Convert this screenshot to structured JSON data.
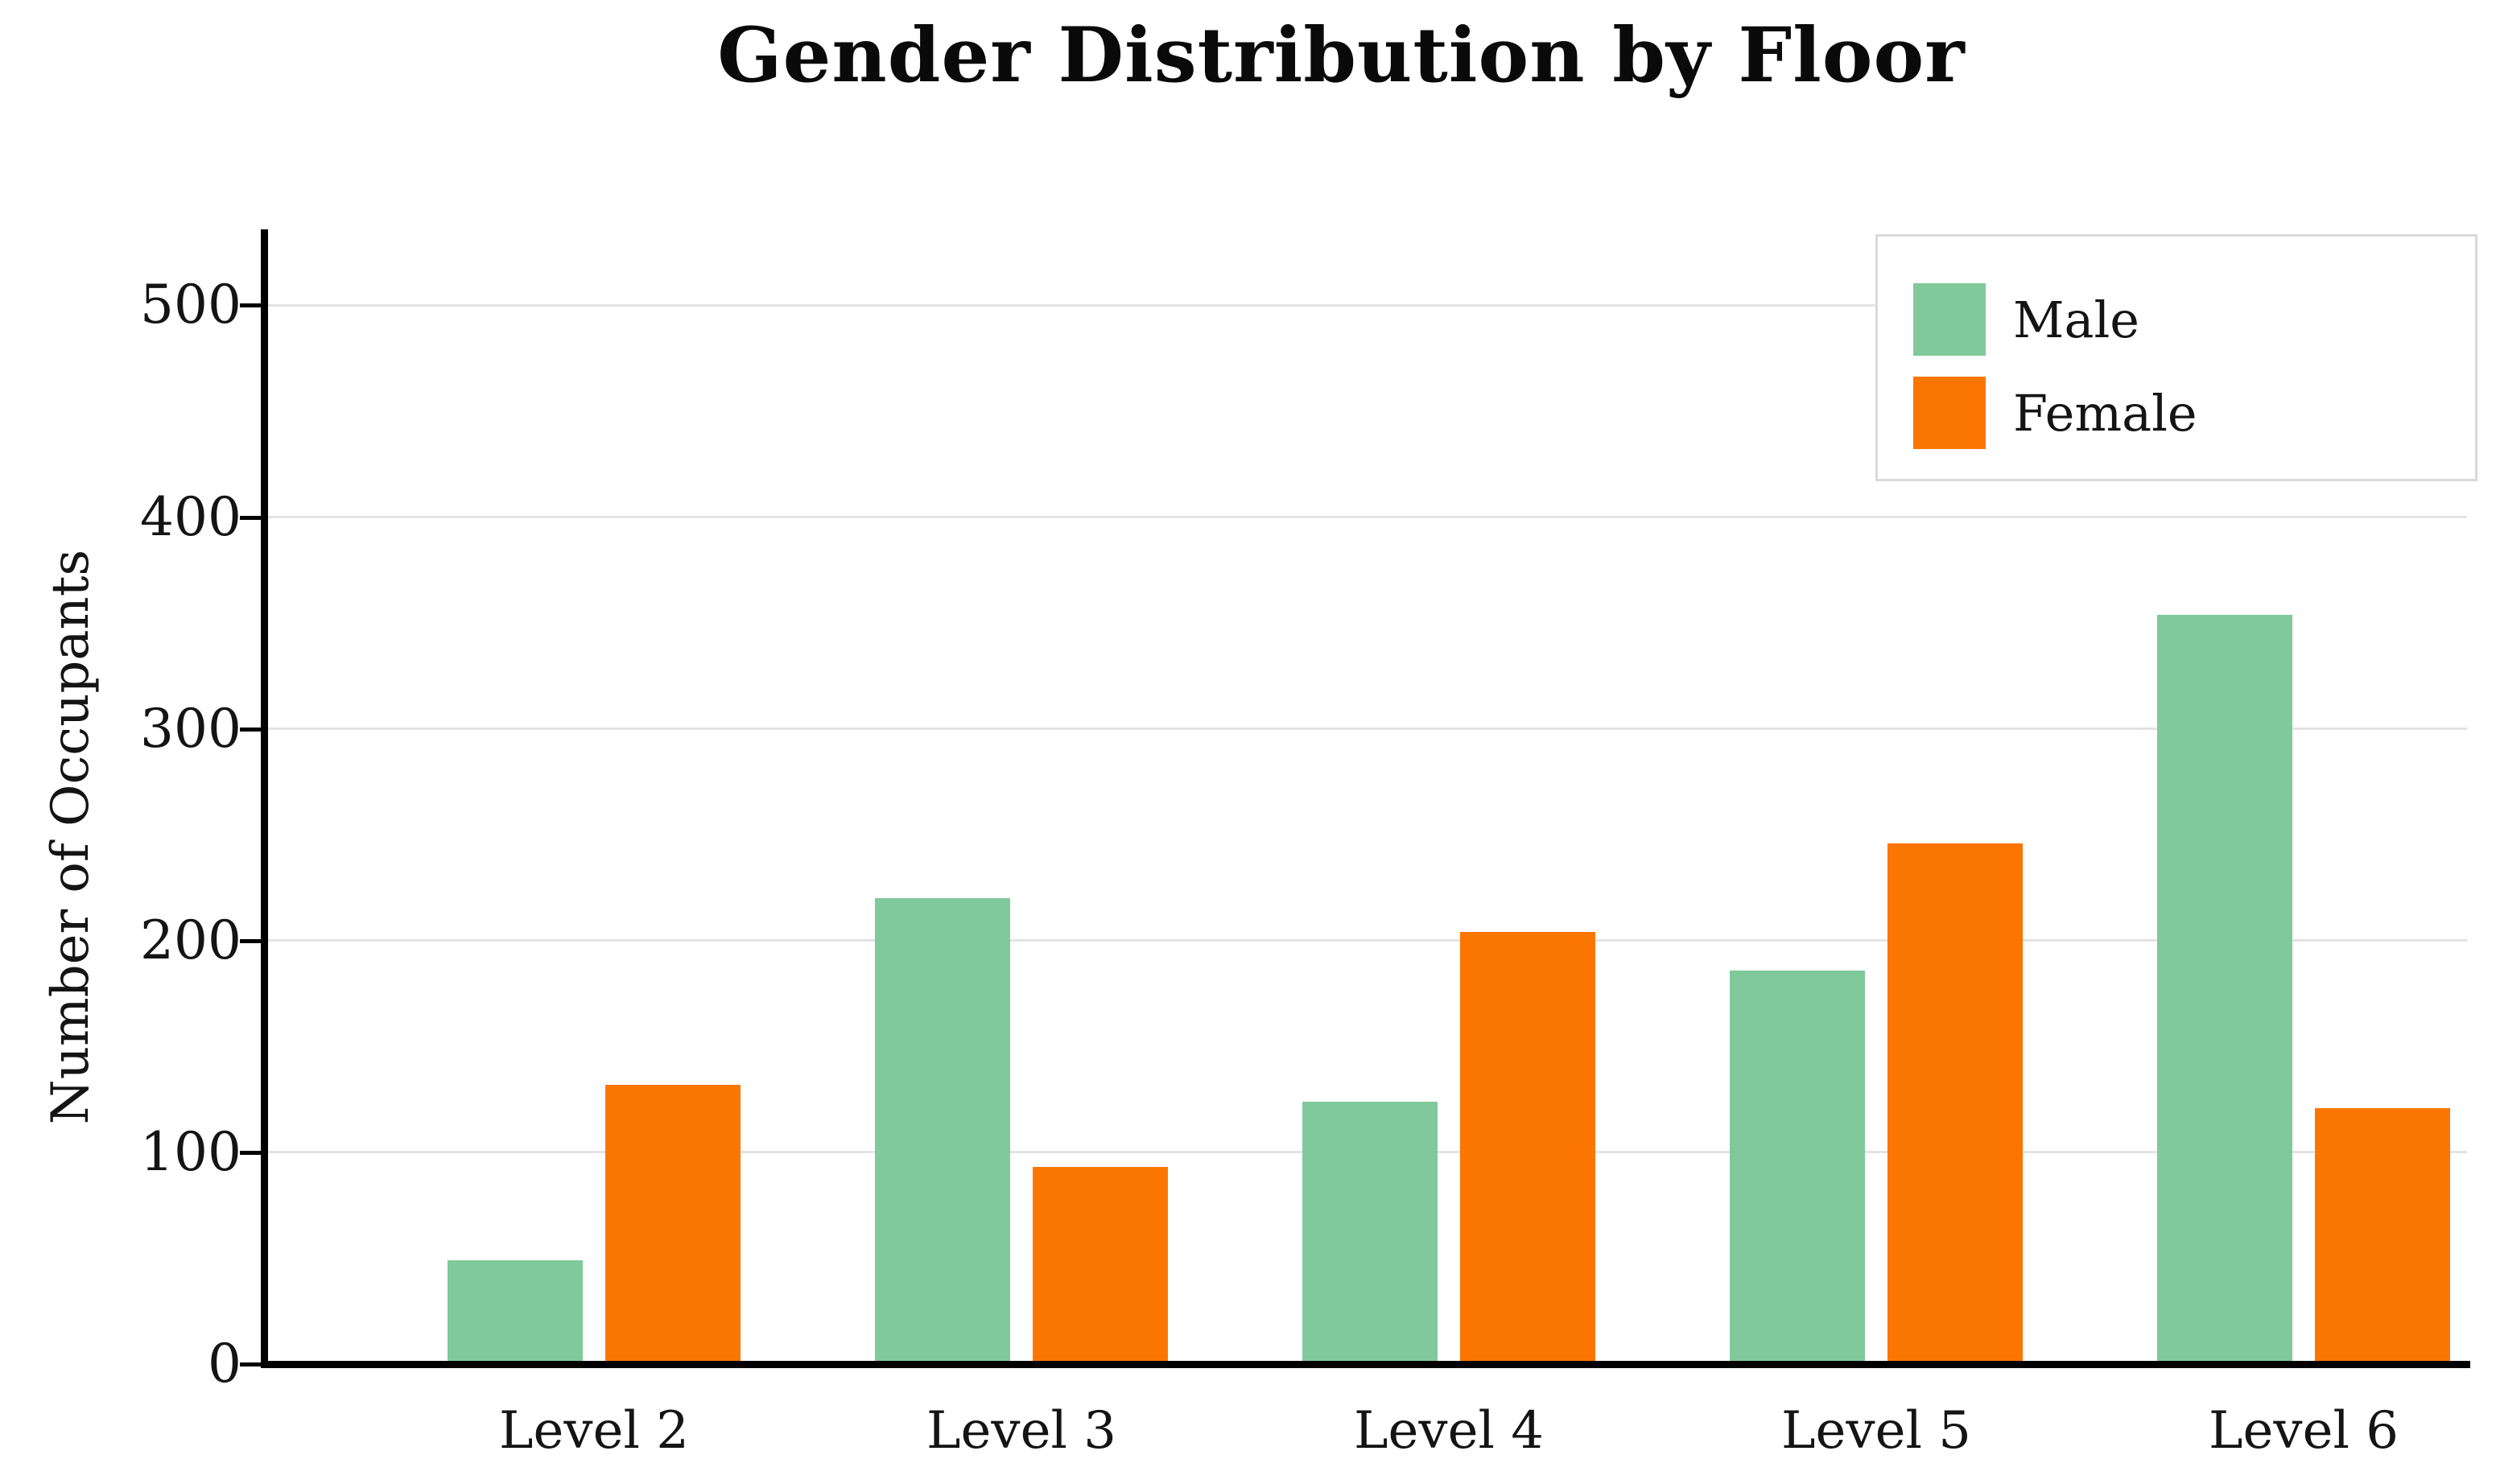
{
  "chart_data": {
    "type": "bar",
    "title": "Gender Distribution by Floor",
    "xlabel": "",
    "ylabel": "Number of Occupants",
    "categories": [
      "Level 2",
      "Level 3",
      "Level 4",
      "Level 5",
      "Level 6"
    ],
    "series": [
      {
        "name": "Male",
        "color": "#80c99a",
        "values": [
          49,
          220,
          124,
          186,
          354
        ]
      },
      {
        "name": "Female",
        "color": "#fb7600",
        "values": [
          132,
          93,
          204,
          246,
          121
        ]
      }
    ],
    "yticks": [
      0,
      100,
      200,
      300,
      400,
      500
    ],
    "ylim": [
      0,
      534
    ],
    "grid": "horizontal",
    "gridline_color": "#e4e4e4",
    "axis_color": "#000000",
    "legend_position": "top-right",
    "legend_border_color": "#d9d9d9",
    "background_color": "#ffffff"
  }
}
